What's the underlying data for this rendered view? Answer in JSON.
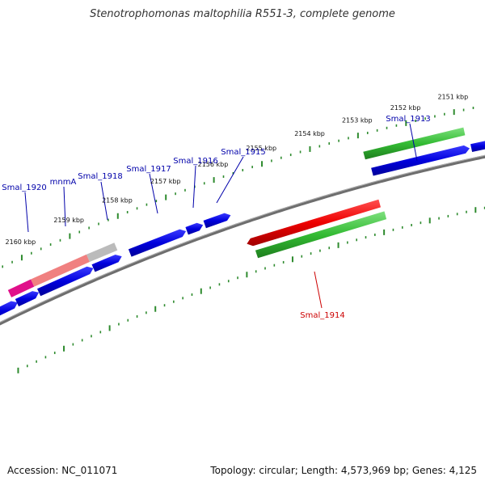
{
  "title": "Stenotrophomonas maltophilia R551-3, complete genome",
  "footer": {
    "accession": "Accession: NC_011071",
    "summary": "Topology: circular; Length: 4,573,969 bp; Genes: 4,125"
  },
  "colors": {
    "backbone": "#808080",
    "tick": "#2e8b2e",
    "cds_blue": "#0000ee",
    "cds_green": "#33bb33",
    "cds_red": "#ee0000",
    "cds_pink": "#e0108a",
    "cds_salmon": "#f08080",
    "cds_grey": "#bbbbbb",
    "label_blue": "#0000aa",
    "label_red": "#cc0000"
  },
  "chart_data": {
    "type": "genome-map",
    "axis_unit": "kbp",
    "scale_labels": [
      "2151 kbp",
      "2152 kbp",
      "2153 kbp",
      "2154 kbp",
      "2155 kbp",
      "2156 kbp",
      "2157 kbp",
      "2158 kbp",
      "2159 kbp",
      "2160 kbp"
    ],
    "gene_labels": [
      {
        "name": "Smal_1913",
        "color": "label_blue"
      },
      {
        "name": "Smal_1914",
        "color": "label_red"
      },
      {
        "name": "Smal_1915",
        "color": "label_blue"
      },
      {
        "name": "Smal_1916",
        "color": "label_blue"
      },
      {
        "name": "Smal_1917",
        "color": "label_blue"
      },
      {
        "name": "Smal_1918",
        "color": "label_blue"
      },
      {
        "name": "mnmA",
        "color": "label_blue"
      },
      {
        "name": "Smal_1920",
        "color": "label_blue"
      }
    ]
  }
}
